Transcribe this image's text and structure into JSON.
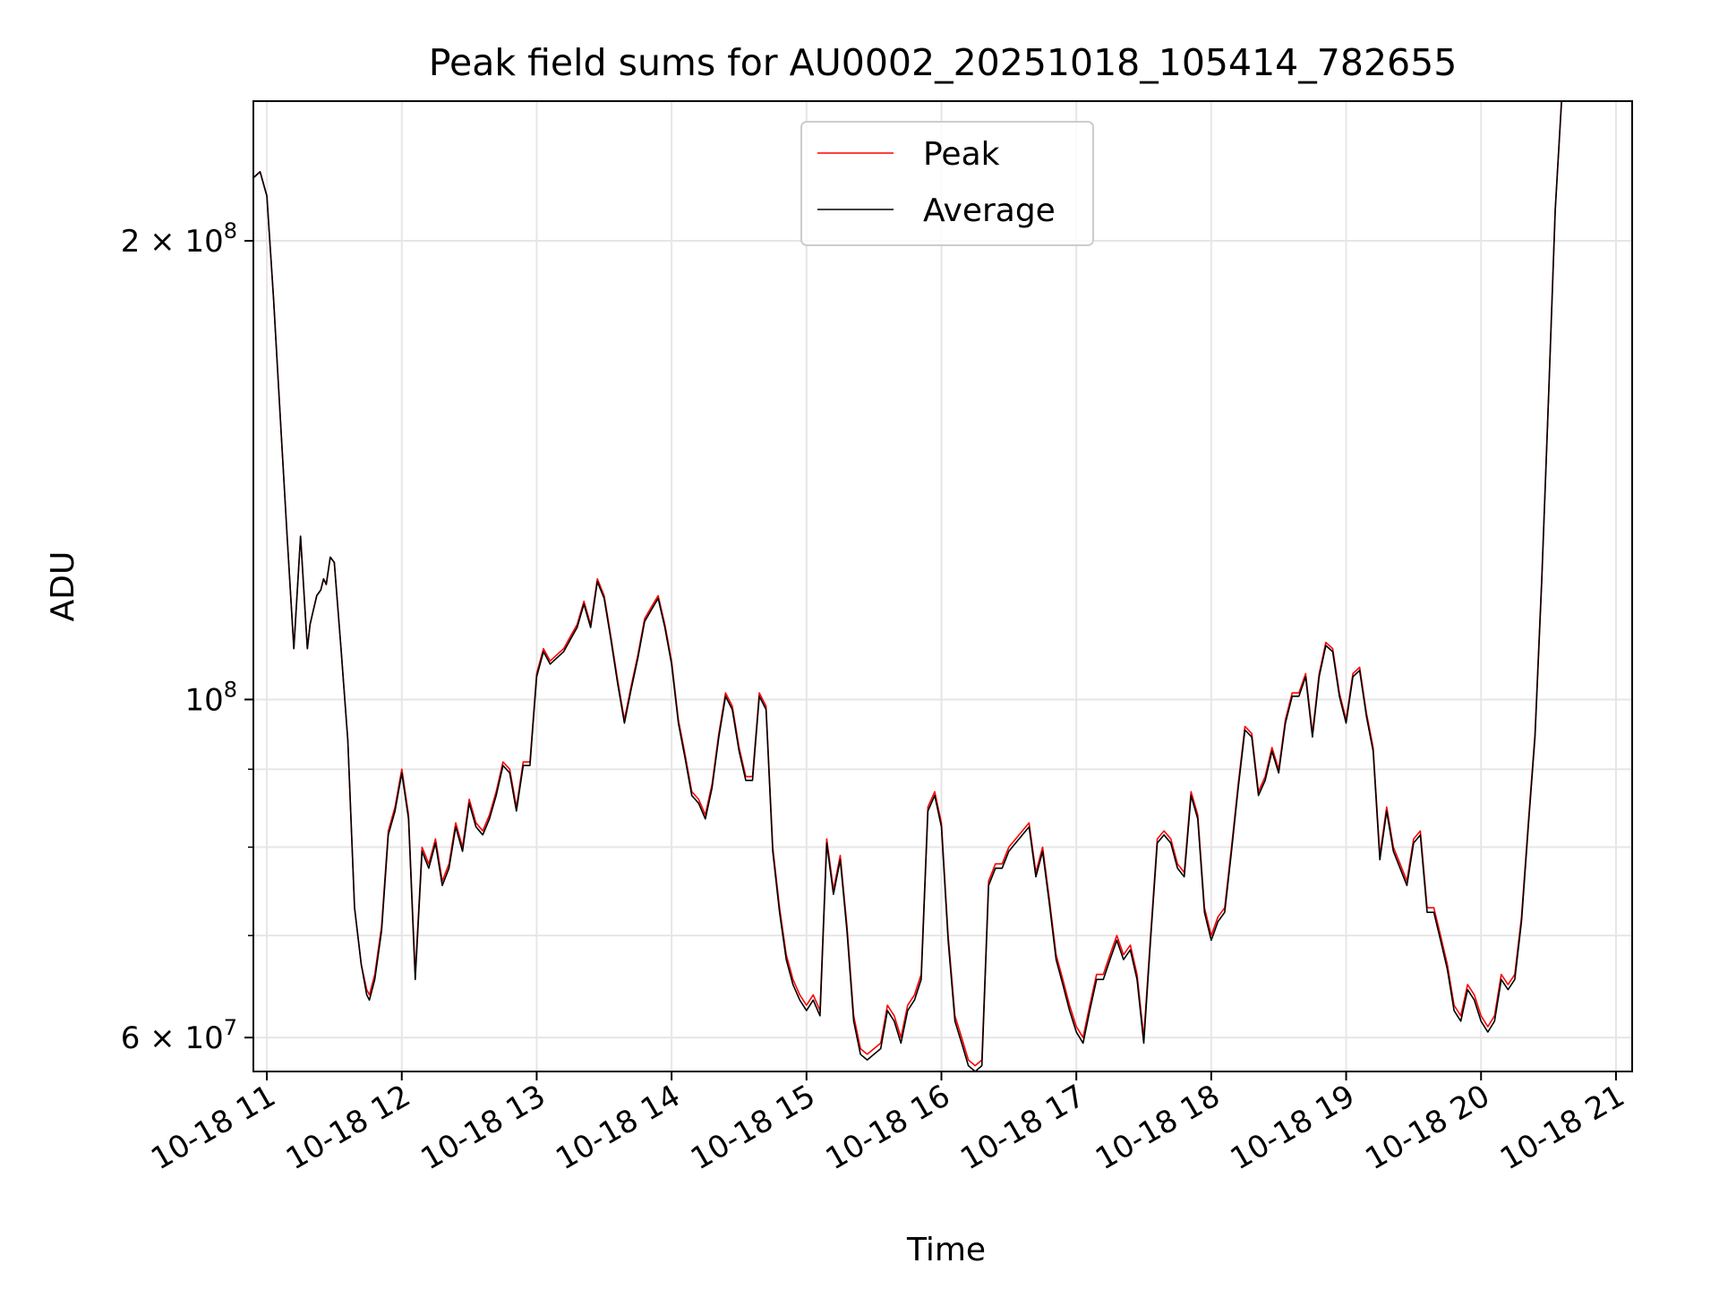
{
  "chart_data": {
    "type": "line",
    "title": "Peak field sums for AU0002_20251018_105414_782655",
    "xlabel": "Time",
    "ylabel": "ADU",
    "yscale": "log",
    "ylim": [
      57000000,
      247000000
    ],
    "xlim_hours": [
      10.9,
      21.12
    ],
    "grid": true,
    "legend_position": "upper center",
    "x_ticks": [
      {
        "hour": 11,
        "label": "10-18 11"
      },
      {
        "hour": 12,
        "label": "10-18 12"
      },
      {
        "hour": 13,
        "label": "10-18 13"
      },
      {
        "hour": 14,
        "label": "10-18 14"
      },
      {
        "hour": 15,
        "label": "10-18 15"
      },
      {
        "hour": 16,
        "label": "10-18 16"
      },
      {
        "hour": 17,
        "label": "10-18 17"
      },
      {
        "hour": 18,
        "label": "10-18 18"
      },
      {
        "hour": 19,
        "label": "10-18 19"
      },
      {
        "hour": 20,
        "label": "10-18 20"
      },
      {
        "hour": 21,
        "label": "10-18 21"
      }
    ],
    "y_ticks_major": [
      {
        "value": 60000000,
        "mantissa": "6",
        "exponent": "7"
      },
      {
        "value": 100000000,
        "mantissa": "",
        "exponent": "8"
      },
      {
        "value": 200000000,
        "mantissa": "2",
        "exponent": "8"
      }
    ],
    "y_ticks_minor": [
      70000000,
      80000000,
      90000000
    ],
    "times_hours": [
      10.9,
      10.95,
      11.0,
      11.05,
      11.1,
      11.15,
      11.2,
      11.25,
      11.3,
      11.32,
      11.34,
      11.37,
      11.4,
      11.42,
      11.44,
      11.47,
      11.5,
      11.55,
      11.6,
      11.65,
      11.7,
      11.74,
      11.76,
      11.8,
      11.85,
      11.9,
      11.95,
      12.0,
      12.05,
      12.1,
      12.15,
      12.2,
      12.25,
      12.3,
      12.35,
      12.4,
      12.45,
      12.5,
      12.55,
      12.6,
      12.65,
      12.7,
      12.75,
      12.8,
      12.85,
      12.9,
      12.95,
      13.0,
      13.05,
      13.1,
      13.15,
      13.2,
      13.25,
      13.3,
      13.35,
      13.4,
      13.45,
      13.5,
      13.55,
      13.6,
      13.65,
      13.7,
      13.75,
      13.8,
      13.85,
      13.9,
      13.95,
      14.0,
      14.05,
      14.1,
      14.15,
      14.2,
      14.25,
      14.3,
      14.35,
      14.4,
      14.45,
      14.5,
      14.55,
      14.6,
      14.65,
      14.7,
      14.75,
      14.8,
      14.85,
      14.9,
      14.95,
      15.0,
      15.05,
      15.1,
      15.15,
      15.2,
      15.25,
      15.3,
      15.35,
      15.4,
      15.45,
      15.5,
      15.55,
      15.6,
      15.65,
      15.7,
      15.75,
      15.8,
      15.85,
      15.9,
      15.95,
      16.0,
      16.05,
      16.1,
      16.15,
      16.2,
      16.25,
      16.3,
      16.35,
      16.4,
      16.45,
      16.5,
      16.55,
      16.6,
      16.65,
      16.7,
      16.75,
      16.8,
      16.85,
      16.9,
      16.95,
      17.0,
      17.05,
      17.1,
      17.15,
      17.2,
      17.25,
      17.3,
      17.35,
      17.4,
      17.45,
      17.5,
      17.55,
      17.6,
      17.65,
      17.7,
      17.75,
      17.8,
      17.85,
      17.9,
      17.95,
      18.0,
      18.05,
      18.1,
      18.15,
      18.2,
      18.25,
      18.3,
      18.35,
      18.4,
      18.45,
      18.5,
      18.55,
      18.6,
      18.65,
      18.7,
      18.75,
      18.8,
      18.85,
      18.9,
      18.95,
      19.0,
      19.05,
      19.1,
      19.15,
      19.2,
      19.25,
      19.3,
      19.35,
      19.4,
      19.45,
      19.5,
      19.55,
      19.6,
      19.65,
      19.7,
      19.75,
      19.8,
      19.85,
      19.9,
      19.95,
      20.0,
      20.05,
      20.1,
      20.15,
      20.2,
      20.25,
      20.3,
      20.35,
      20.4,
      20.45,
      20.5,
      20.55,
      20.6,
      20.65,
      20.7,
      20.75,
      20.8,
      20.85,
      20.9,
      20.95
    ],
    "series": [
      {
        "name": "Peak",
        "color": "#ff0000",
        "values": [
          220000000,
          222000000,
          214000000,
          183000000,
          153000000,
          128000000,
          108000000,
          128000000,
          108000000,
          112000000,
          114000000,
          117000000,
          118000000,
          120000000,
          119000000,
          124000000,
          123000000,
          108000000,
          94000000,
          73000000,
          67000000,
          64500000,
          64000000,
          66000000,
          71000000,
          82000000,
          85000000,
          90000000,
          84000000,
          66000000,
          80000000,
          78000000,
          81000000,
          76000000,
          78000000,
          83000000,
          80000000,
          86000000,
          83000000,
          82000000,
          84000000,
          87000000,
          91000000,
          90000000,
          85000000,
          91000000,
          91000000,
          104000000,
          108000000,
          106000000,
          107000000,
          108000000,
          110000000,
          112000000,
          116000000,
          112000000,
          120000000,
          117000000,
          110000000,
          103000000,
          97000000,
          102000000,
          107000000,
          113000000,
          115000000,
          117000000,
          112000000,
          106000000,
          97000000,
          92000000,
          87000000,
          86000000,
          84000000,
          88000000,
          95000000,
          101000000,
          99000000,
          93000000,
          89000000,
          89000000,
          101000000,
          99000000,
          80000000,
          73000000,
          68000000,
          65500000,
          64000000,
          63000000,
          64000000,
          62500000,
          81000000,
          75000000,
          79000000,
          71000000,
          62000000,
          59000000,
          58500000,
          59000000,
          59500000,
          63000000,
          62000000,
          60000000,
          63000000,
          64000000,
          66000000,
          85000000,
          87000000,
          83000000,
          70000000,
          62000000,
          60000000,
          58000000,
          57500000,
          58000000,
          76000000,
          78000000,
          78000000,
          80000000,
          81000000,
          82000000,
          83000000,
          77000000,
          80000000,
          74000000,
          68000000,
          65500000,
          63000000,
          61000000,
          60000000,
          63000000,
          66000000,
          66000000,
          68000000,
          70000000,
          68000000,
          69000000,
          66000000,
          60000000,
          70000000,
          81000000,
          82000000,
          81000000,
          78000000,
          77000000,
          87000000,
          84000000,
          73000000,
          70000000,
          72000000,
          73000000,
          80000000,
          88000000,
          96000000,
          95000000,
          87000000,
          89000000,
          93000000,
          90000000,
          97000000,
          101000000,
          101000000,
          104000000,
          95000000,
          104000000,
          109000000,
          108000000,
          101000000,
          97000000,
          104000000,
          105000000,
          98000000,
          93000000,
          79000000,
          85000000,
          80000000,
          78000000,
          76000000,
          81000000,
          82000000,
          73000000,
          73000000,
          70000000,
          67000000,
          63000000,
          62000000,
          65000000,
          64000000,
          62000000,
          61000000,
          62000000,
          66000000,
          65000000,
          66000000,
          72000000,
          83000000,
          95000000,
          120000000,
          158000000,
          210000000,
          250000000
        ]
      },
      {
        "name": "Average",
        "color": "#000000",
        "values": [
          220000000,
          222000000,
          214000000,
          183000000,
          153000000,
          128000000,
          108000000,
          128000000,
          108000000,
          112000000,
          114000000,
          117000000,
          118000000,
          120000000,
          119000000,
          124000000,
          123000000,
          108000000,
          94000000,
          73000000,
          67000000,
          64000000,
          63500000,
          65500000,
          70500000,
          81500000,
          84500000,
          89500000,
          83500000,
          65500000,
          79500000,
          77500000,
          80500000,
          75500000,
          77500000,
          82500000,
          79500000,
          85500000,
          82500000,
          81500000,
          83500000,
          86500000,
          90500000,
          89500000,
          84500000,
          90500000,
          90500000,
          103500000,
          107500000,
          105500000,
          106500000,
          107500000,
          109500000,
          111500000,
          115500000,
          111500000,
          119500000,
          116500000,
          109500000,
          102500000,
          96500000,
          101500000,
          106500000,
          112500000,
          114500000,
          116500000,
          111500000,
          105500000,
          96500000,
          91500000,
          86500000,
          85500000,
          83500000,
          87500000,
          94500000,
          100500000,
          98500000,
          92500000,
          88500000,
          88500000,
          100500000,
          98500000,
          79500000,
          72500000,
          67500000,
          65000000,
          63500000,
          62500000,
          63500000,
          62000000,
          80500000,
          74500000,
          78500000,
          70500000,
          61500000,
          58500000,
          58000000,
          58500000,
          59000000,
          62500000,
          61500000,
          59500000,
          62500000,
          63500000,
          65500000,
          84500000,
          86500000,
          82500000,
          69500000,
          61500000,
          59500000,
          57500000,
          57000000,
          57500000,
          75500000,
          77500000,
          77500000,
          79500000,
          80500000,
          81500000,
          82500000,
          76500000,
          79500000,
          73500000,
          67500000,
          65000000,
          62500000,
          60500000,
          59500000,
          62500000,
          65500000,
          65500000,
          67500000,
          69500000,
          67500000,
          68500000,
          65500000,
          59500000,
          69500000,
          80500000,
          81500000,
          80500000,
          77500000,
          76500000,
          86500000,
          83500000,
          72500000,
          69500000,
          71500000,
          72500000,
          79500000,
          87500000,
          95500000,
          94500000,
          86500000,
          88500000,
          92500000,
          89500000,
          96500000,
          100500000,
          100500000,
          103500000,
          94500000,
          103500000,
          108500000,
          107500000,
          100500000,
          96500000,
          103500000,
          104500000,
          97500000,
          92500000,
          78500000,
          84500000,
          79500000,
          77500000,
          75500000,
          80500000,
          81500000,
          72500000,
          72500000,
          69500000,
          66500000,
          62500000,
          61500000,
          64500000,
          63500000,
          61500000,
          60500000,
          61500000,
          65500000,
          64500000,
          65500000,
          71500000,
          82500000,
          94500000,
          119500000,
          157500000,
          209500000,
          249500000
        ]
      }
    ]
  }
}
